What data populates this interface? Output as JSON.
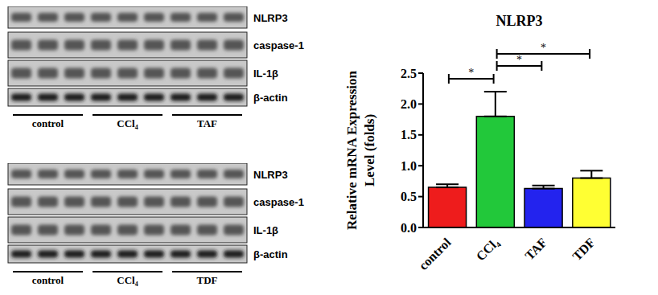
{
  "chart_data": {
    "type": "bar",
    "title": "NLRP3",
    "y_label": "Relative mRNA Expression Level (folds)",
    "categories": [
      "control",
      "CCl₄",
      "TAF",
      "TDF"
    ],
    "values": [
      0.65,
      1.8,
      0.63,
      0.8
    ],
    "errors": [
      0.05,
      0.4,
      0.05,
      0.12
    ],
    "colors": [
      "#ee1c1c",
      "#22c83a",
      "#2323ee",
      "#ffff33"
    ],
    "ylim": [
      0,
      2.5
    ],
    "yticks": [
      {
        "value": 0,
        "label": "0.0"
      },
      0.5,
      {
        "value": 1,
        "label": "1.0"
      },
      1.5,
      {
        "value": 2,
        "label": "2.0"
      },
      2.5
    ],
    "annotations": [
      {
        "from": "control",
        "to": "CCl₄",
        "label": "*"
      },
      {
        "from": "CCl₄",
        "to": "TAF",
        "label": "*"
      },
      {
        "from": "CCl₄",
        "to": "TDF",
        "label": "*"
      }
    ]
  },
  "blots": [
    {
      "proteins": [
        "NLRP3",
        "caspase-1",
        "IL-1β",
        "β-actin"
      ],
      "groups": [
        "control",
        "CCl₄",
        "TAF"
      ]
    },
    {
      "proteins": [
        "NLRP3",
        "caspase-1",
        "IL-1β",
        "β-actin"
      ],
      "groups": [
        "control",
        "CCl₄",
        "TDF"
      ]
    }
  ]
}
